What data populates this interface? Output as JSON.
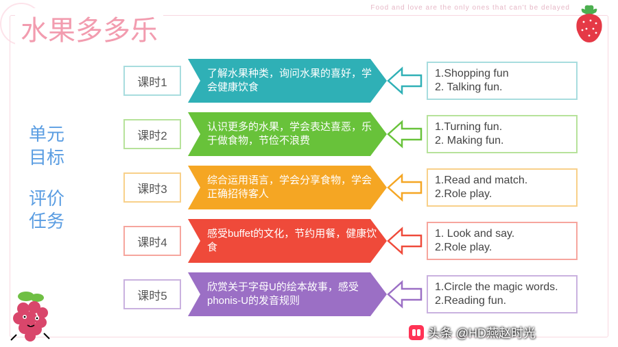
{
  "top_quote": "Food and love are the only ones that can't be delayed",
  "title": "水果多多乐",
  "sidebar": {
    "line1": "单元",
    "line2": "目标",
    "line3": "评价",
    "line4": "任务"
  },
  "rows": [
    {
      "label": "课时1",
      "content": "了解水果种类，询问水果的喜好，学会健康饮食",
      "right1": "1.Shopping fun",
      "right2": "2. Talking fun.",
      "color": "#2fb0b6",
      "border": "#a7dcde"
    },
    {
      "label": "课时2",
      "content": "认识更多的水果，学会表达喜恶，乐于做食物，节俭不浪费",
      "right1": "1.Turning fun.",
      "right2": "2. Making fun.",
      "color": "#68c23a",
      "border": "#b6e29a"
    },
    {
      "label": "课时3",
      "content": "综合运用语言，学会分享食物，学会正确招待客人",
      "right1": "1.Read and match.",
      "right2": "2.Role play.",
      "color": "#f5a623",
      "border": "#f8d089"
    },
    {
      "label": "课时4",
      "content": "感受buffet的文化，节约用餐，健康饮食",
      "right1": "1. Look and say.",
      "right2": "2.Role play.",
      "color": "#ef4a3a",
      "border": "#f6a59d"
    },
    {
      "label": "课时5",
      "content": "欣赏关于字母U的绘本故事，感受phonis-U的发音规则",
      "right1": "1.Circle the magic words.",
      "right2": "2.Reading fun.",
      "color": "#9b6fc5",
      "border": "#c9b1df"
    }
  ],
  "credit": "头条 @HD燕赵时光",
  "colors": {
    "title": "#f29caf",
    "sidebar": "#5a9de2",
    "frame": "#f8d7e0"
  }
}
